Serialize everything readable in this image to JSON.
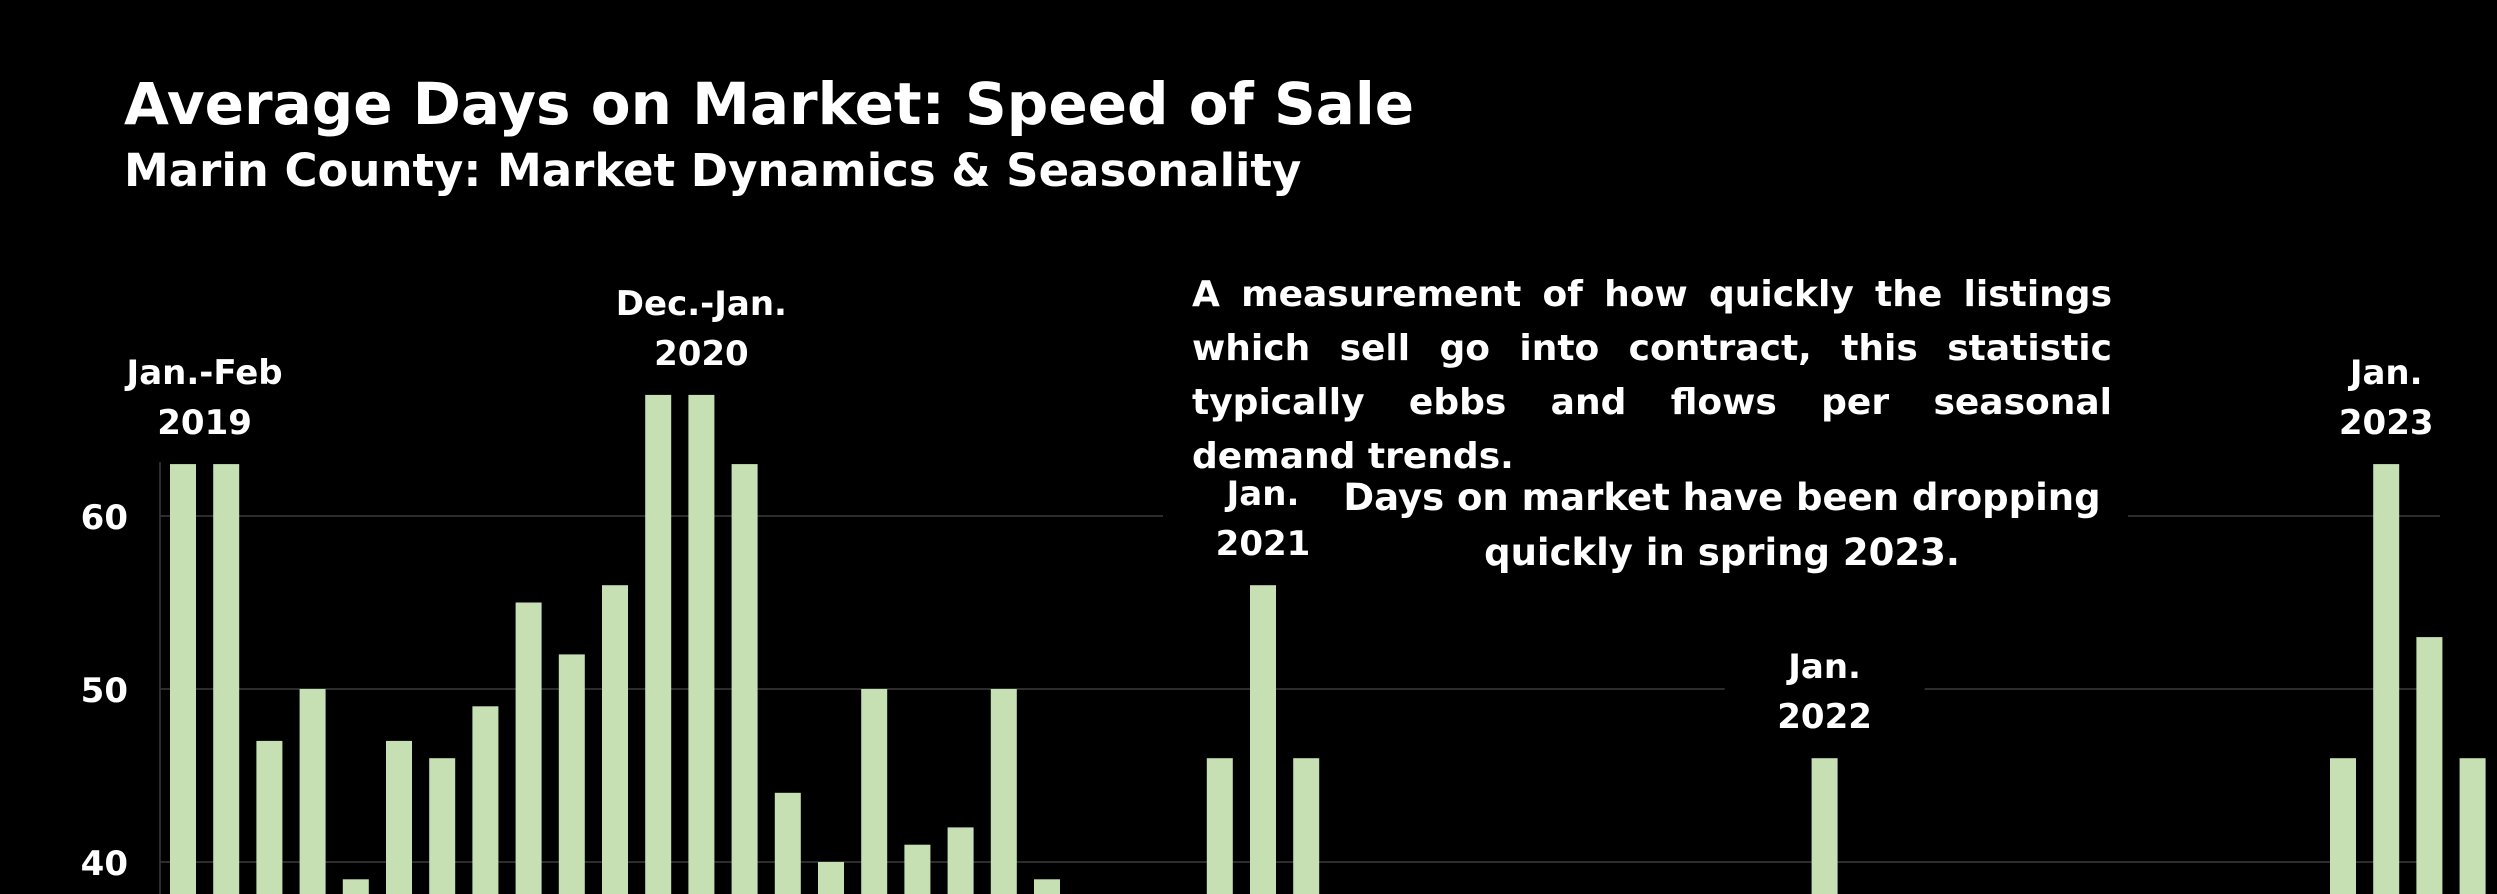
{
  "header": {
    "title": "Average Days on Market:  Speed of Sale",
    "subtitle": "Marin County: Market Dynamics & Seasonality"
  },
  "notes": {
    "description": "A measurement of how quickly the listings which sell go into contract, this statistic typically ebbs and flows per seasonal demand trends.",
    "callout": "Days on market have been dropping quickly in spring 2023."
  },
  "colors": {
    "background": "#000000",
    "bar": "#c6e0b4",
    "gridline": "#3a3a3a",
    "text": "#ffffff"
  },
  "chart_data": {
    "type": "bar",
    "yticks": [
      40,
      50,
      60
    ],
    "ylim": [
      33,
      64
    ],
    "grid": true,
    "legend": "none",
    "values": [
      63,
      63,
      47,
      50,
      39,
      47,
      46,
      49,
      55,
      52,
      56,
      67,
      67,
      63,
      44,
      40,
      50,
      41,
      42,
      50,
      39,
      null,
      null,
      null,
      46,
      56,
      46,
      null,
      null,
      null,
      null,
      null,
      null,
      null,
      null,
      null,
      null,
      null,
      46,
      null,
      null,
      null,
      null,
      null,
      null,
      null,
      null,
      null,
      null,
      null,
      46,
      63,
      53,
      46,
      null,
      null,
      null
    ],
    "annotations": [
      {
        "label_lines": [
          "Jan.-Feb",
          "2019"
        ],
        "bar_index": 0.5
      },
      {
        "label_lines": [
          "Dec.-Jan.",
          "2020"
        ],
        "bar_index": 12
      },
      {
        "label_lines": [
          "Jan.",
          "2021"
        ],
        "bar_index": 25
      },
      {
        "label_lines": [
          "Jan.",
          "2022"
        ],
        "bar_index": 38
      },
      {
        "label_lines": [
          "Jan.",
          "2023"
        ],
        "bar_index": 51
      }
    ]
  }
}
